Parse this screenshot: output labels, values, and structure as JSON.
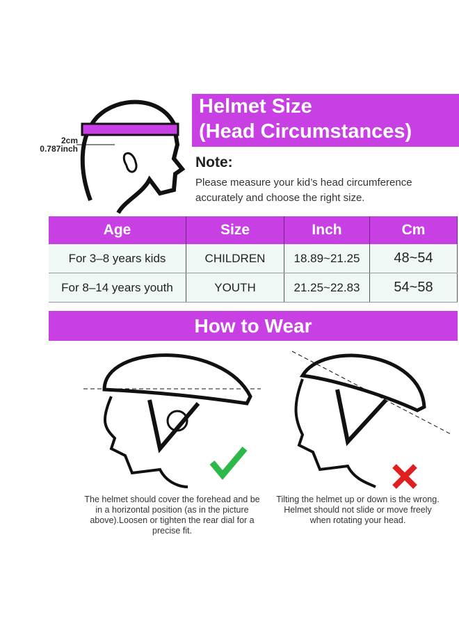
{
  "header": {
    "title_line1": "Helmet Size",
    "title_line2": "(Head Circumstances)",
    "accent_color": "#c840e4"
  },
  "measure": {
    "cm": "2cm",
    "inch": "0.787inch"
  },
  "note": {
    "heading": "Note:",
    "text": "Please measure your kid’s head circumference accurately and choose the right size."
  },
  "table": {
    "headers": [
      "Age",
      "Size",
      "Inch",
      "Cm"
    ],
    "rows": [
      [
        "For 3–8 years kids",
        "CHILDREN",
        "18.89~21.25",
        "48~54"
      ],
      [
        "For 8–14 years youth",
        "YOUTH",
        "21.25~22.83",
        "54~58"
      ]
    ]
  },
  "how_to_wear": {
    "title": "How to Wear",
    "correct": {
      "icon": "checkmark-icon",
      "color": "#2db84a",
      "caption": "The helmet should cover the forehead and be in a horizontal position (as in the picture above).Loosen or tighten the rear dial for a precise fit."
    },
    "wrong": {
      "icon": "cross-icon",
      "color": "#e02020",
      "caption": "Tilting the helmet up or down is the wrong. Helmet should not slide or move freely when rotating your head."
    }
  }
}
